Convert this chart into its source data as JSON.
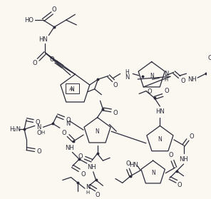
{
  "background_color": "#faf8f0",
  "line_color": "#2a2a3a",
  "figsize": [
    2.96,
    2.79
  ],
  "dpi": 100,
  "xlim": [
    0,
    296
  ],
  "ylim": [
    0,
    279
  ]
}
